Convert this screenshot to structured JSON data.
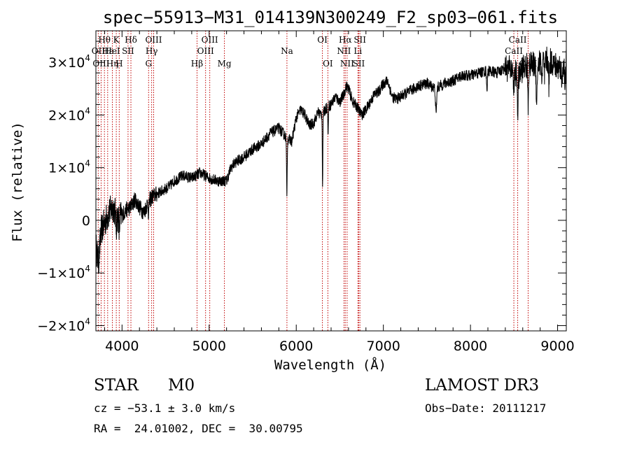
{
  "chart_data": {
    "type": "line",
    "title": "spec−55913−M31_014139N300249_F2_sp03−061.fits",
    "xlabel": "Wavelength (Å)",
    "ylabel": "Flux (relative)",
    "xlim": [
      3700,
      9100
    ],
    "ylim": [
      -21000,
      36000
    ],
    "x_ticks": [
      {
        "value": 4000,
        "label": "4000"
      },
      {
        "value": 5000,
        "label": "5000"
      },
      {
        "value": 6000,
        "label": "6000"
      },
      {
        "value": 7000,
        "label": "7000"
      },
      {
        "value": 8000,
        "label": "8000"
      },
      {
        "value": 9000,
        "label": "9000"
      }
    ],
    "y_ticks": [
      {
        "value": -20000,
        "mant": "−2×10",
        "exp": "4"
      },
      {
        "value": -10000,
        "mant": "−1×10",
        "exp": "4"
      },
      {
        "value": 0,
        "mant": "0",
        "exp": ""
      },
      {
        "value": 10000,
        "mant": "1×10",
        "exp": "4"
      },
      {
        "value": 20000,
        "mant": "2×10",
        "exp": "4"
      },
      {
        "value": 30000,
        "mant": "3×10",
        "exp": "4"
      }
    ],
    "spectrum_anchors": [
      [
        3700,
        -5000
      ],
      [
        3730,
        -8000
      ],
      [
        3760,
        -2000
      ],
      [
        3800,
        -500
      ],
      [
        3850,
        1500
      ],
      [
        3900,
        2500
      ],
      [
        3950,
        500
      ],
      [
        4000,
        1000
      ],
      [
        4050,
        2000
      ],
      [
        4100,
        2500
      ],
      [
        4150,
        4000
      ],
      [
        4200,
        2500
      ],
      [
        4250,
        1500
      ],
      [
        4300,
        3500
      ],
      [
        4350,
        4500
      ],
      [
        4400,
        5000
      ],
      [
        4500,
        6000
      ],
      [
        4550,
        6500
      ],
      [
        4600,
        7500
      ],
      [
        4700,
        8500
      ],
      [
        4800,
        8000
      ],
      [
        4900,
        9000
      ],
      [
        4950,
        8500
      ],
      [
        5000,
        8000
      ],
      [
        5100,
        7500
      ],
      [
        5200,
        7500
      ],
      [
        5250,
        10000
      ],
      [
        5300,
        11000
      ],
      [
        5400,
        12000
      ],
      [
        5500,
        13500
      ],
      [
        5600,
        14500
      ],
      [
        5700,
        16500
      ],
      [
        5800,
        17500
      ],
      [
        5850,
        16500
      ],
      [
        5900,
        15500
      ],
      [
        5950,
        15000
      ],
      [
        6000,
        19500
      ],
      [
        6050,
        21000
      ],
      [
        6100,
        20000
      ],
      [
        6150,
        18000
      ],
      [
        6200,
        18500
      ],
      [
        6250,
        20500
      ],
      [
        6300,
        20000
      ],
      [
        6350,
        21500
      ],
      [
        6400,
        22000
      ],
      [
        6450,
        23500
      ],
      [
        6500,
        22500
      ],
      [
        6550,
        24000
      ],
      [
        6570,
        25500
      ],
      [
        6600,
        25000
      ],
      [
        6650,
        22500
      ],
      [
        6700,
        21500
      ],
      [
        6750,
        20000
      ],
      [
        6800,
        21000
      ],
      [
        6850,
        22500
      ],
      [
        6900,
        24000
      ],
      [
        6950,
        24500
      ],
      [
        7000,
        26000
      ],
      [
        7050,
        26500
      ],
      [
        7100,
        23500
      ],
      [
        7150,
        23000
      ],
      [
        7200,
        23500
      ],
      [
        7300,
        24500
      ],
      [
        7400,
        25500
      ],
      [
        7500,
        26000
      ],
      [
        7600,
        25000
      ],
      [
        7700,
        26000
      ],
      [
        7800,
        26500
      ],
      [
        7900,
        27500
      ],
      [
        8000,
        27500
      ],
      [
        8100,
        28000
      ],
      [
        8200,
        28500
      ],
      [
        8300,
        28000
      ],
      [
        8400,
        29000
      ],
      [
        8500,
        28500
      ],
      [
        8550,
        27000
      ],
      [
        8600,
        29000
      ],
      [
        8700,
        29500
      ],
      [
        8800,
        30000
      ],
      [
        8900,
        30500
      ],
      [
        9000,
        29000
      ],
      [
        9100,
        30500
      ]
    ],
    "absorption_features": [
      {
        "center": 5892,
        "depth": 10500,
        "width": 4
      },
      {
        "center": 6302,
        "depth": 14000,
        "width": 3
      },
      {
        "center": 6365,
        "depth": 6000,
        "width": 3
      },
      {
        "center": 3933,
        "depth": 3000,
        "width": 4
      },
      {
        "center": 3968,
        "depth": 3000,
        "width": 4
      },
      {
        "center": 4305,
        "depth": 2500,
        "width": 4
      },
      {
        "center": 7605,
        "depth": 5000,
        "width": 6
      },
      {
        "center": 8190,
        "depth": 3500,
        "width": 5
      },
      {
        "center": 8498,
        "depth": 4500,
        "width": 4
      },
      {
        "center": 8542,
        "depth": 7000,
        "width": 4
      },
      {
        "center": 8662,
        "depth": 7500,
        "width": 4
      },
      {
        "center": 8760,
        "depth": 7000,
        "width": 6
      },
      {
        "center": 8820,
        "depth": 3500,
        "width": 5
      },
      {
        "center": 8850,
        "depth": 3000,
        "width": 5
      },
      {
        "center": 8900,
        "depth": 5000,
        "width": 5
      },
      {
        "center": 9050,
        "depth": 4000,
        "width": 6
      },
      {
        "center": 9085,
        "depth": 6000,
        "width": 5
      }
    ],
    "line_markers": [
      {
        "label": "Hθ",
        "wavelength": 3798,
        "row": 0
      },
      {
        "label": "K",
        "wavelength": 3934,
        "row": 0
      },
      {
        "label": "Hδ",
        "wavelength": 4102,
        "row": 0
      },
      {
        "label": "OIII",
        "wavelength": 4363,
        "row": 0
      },
      {
        "label": "OIII",
        "wavelength": 5007,
        "row": 0
      },
      {
        "label": "OI",
        "wavelength": 6300,
        "row": 0
      },
      {
        "label": "Hα",
        "wavelength": 6563,
        "row": 0
      },
      {
        "label": "SII",
        "wavelength": 6731,
        "row": 0
      },
      {
        "label": "CaII",
        "wavelength": 8542,
        "row": 0
      },
      {
        "label": "OII",
        "wavelength": 3727,
        "row": 1
      },
      {
        "label": "Hε",
        "wavelength": 3835,
        "row": 1
      },
      {
        "label": "HeI",
        "wavelength": 3889,
        "row": 1
      },
      {
        "label": "SII",
        "wavelength": 4069,
        "row": 1
      },
      {
        "label": "Hγ",
        "wavelength": 4340,
        "row": 1
      },
      {
        "label": "OIII",
        "wavelength": 4959,
        "row": 1
      },
      {
        "label": "Na",
        "wavelength": 5893,
        "row": 1
      },
      {
        "label": "NII",
        "wavelength": 6548,
        "row": 1
      },
      {
        "label": "Li",
        "wavelength": 6708,
        "row": 1
      },
      {
        "label": "CaII",
        "wavelength": 8498,
        "row": 1
      },
      {
        "label": "OIII",
        "wavelength": 3760,
        "row": 2
      },
      {
        "label": "Hη",
        "wavelength": 3889,
        "row": 2
      },
      {
        "label": "H",
        "wavelength": 3968,
        "row": 2
      },
      {
        "label": "G",
        "wavelength": 4305,
        "row": 2
      },
      {
        "label": "Hβ",
        "wavelength": 4861,
        "row": 2
      },
      {
        "label": "Mg",
        "wavelength": 5175,
        "row": 2
      },
      {
        "label": "OI",
        "wavelength": 6363,
        "row": 2
      },
      {
        "label": "NII",
        "wavelength": 6584,
        "row": 2
      },
      {
        "label": "SII",
        "wavelength": 6717,
        "row": 2
      },
      {
        "label": "CaII",
        "wavelength": 8662,
        "row": 2
      }
    ],
    "marker_color": "#c00000",
    "line_color": "#000000"
  },
  "info": {
    "object_class": "STAR",
    "subclass": "M0",
    "survey": "LAMOST DR3",
    "cz": "cz = −53.1 ± 3.0 km/s",
    "obs_date": "Obs−Date: 20111217",
    "coords": "RA =  24.01002, DEC =  30.00795"
  }
}
